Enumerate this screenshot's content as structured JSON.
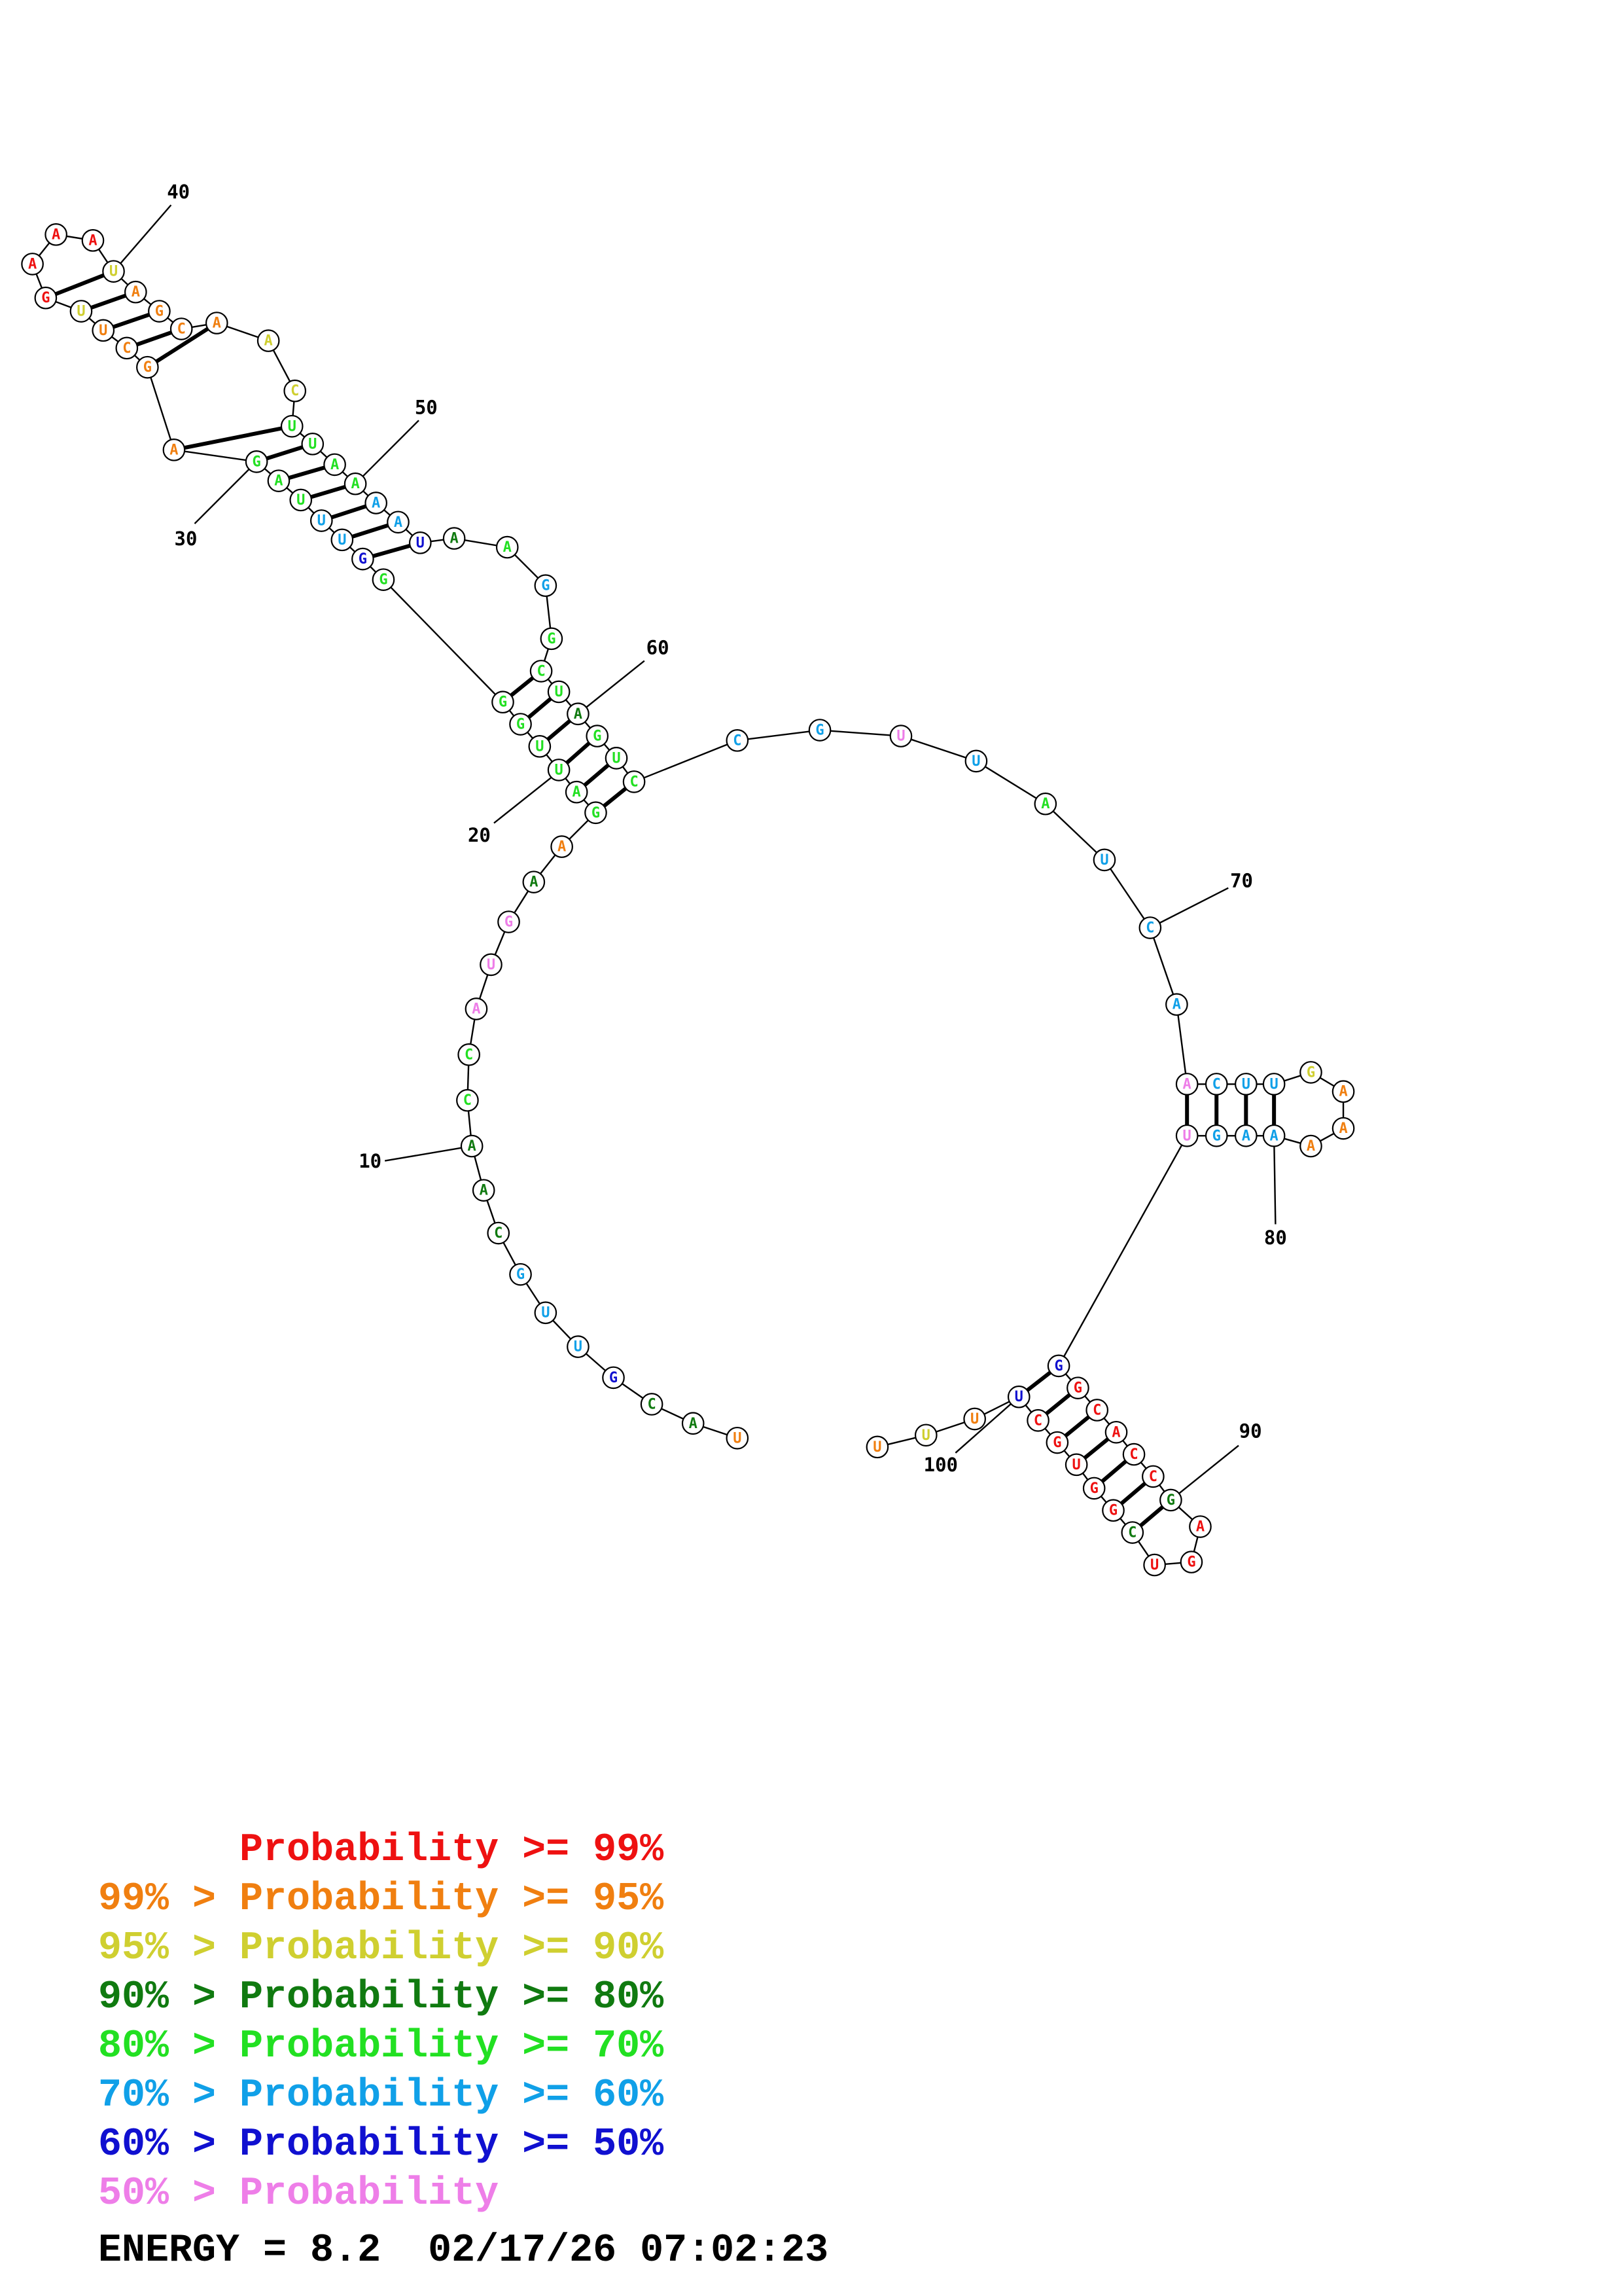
{
  "colors": {
    "p99": "#ee1111",
    "p95": "#f07f10",
    "p90": "#cfcf30",
    "p80": "#107a10",
    "p70": "#22e022",
    "p60": "#10a0e8",
    "p50": "#1010d0",
    "p0": "#ee7ee8"
  },
  "bases": [
    {
      "n": 1,
      "b": "U",
      "c": "p95"
    },
    {
      "n": 2,
      "b": "A",
      "c": "p80"
    },
    {
      "n": 3,
      "b": "C",
      "c": "p80"
    },
    {
      "n": 4,
      "b": "G",
      "c": "p50"
    },
    {
      "n": 5,
      "b": "U",
      "c": "p60"
    },
    {
      "n": 6,
      "b": "U",
      "c": "p60"
    },
    {
      "n": 7,
      "b": "G",
      "c": "p60"
    },
    {
      "n": 8,
      "b": "C",
      "c": "p80"
    },
    {
      "n": 9,
      "b": "A",
      "c": "p80"
    },
    {
      "n": 10,
      "b": "A",
      "c": "p80"
    },
    {
      "n": 11,
      "b": "C",
      "c": "p70"
    },
    {
      "n": 12,
      "b": "C",
      "c": "p70"
    },
    {
      "n": 13,
      "b": "A",
      "c": "p0"
    },
    {
      "n": 14,
      "b": "U",
      "c": "p0"
    },
    {
      "n": 15,
      "b": "G",
      "c": "p0"
    },
    {
      "n": 16,
      "b": "A",
      "c": "p80"
    },
    {
      "n": 17,
      "b": "A",
      "c": "p95"
    },
    {
      "n": 18,
      "b": "G",
      "c": "p70"
    },
    {
      "n": 19,
      "b": "A",
      "c": "p70"
    },
    {
      "n": 20,
      "b": "U",
      "c": "p70"
    },
    {
      "n": 21,
      "b": "U",
      "c": "p70"
    },
    {
      "n": 22,
      "b": "G",
      "c": "p70"
    },
    {
      "n": 23,
      "b": "G",
      "c": "p70"
    },
    {
      "n": 24,
      "b": "G",
      "c": "p70"
    },
    {
      "n": 25,
      "b": "G",
      "c": "p50"
    },
    {
      "n": 26,
      "b": "U",
      "c": "p60"
    },
    {
      "n": 27,
      "b": "U",
      "c": "p60"
    },
    {
      "n": 28,
      "b": "U",
      "c": "p70"
    },
    {
      "n": 29,
      "b": "A",
      "c": "p70"
    },
    {
      "n": 30,
      "b": "G",
      "c": "p70"
    },
    {
      "n": 31,
      "b": "A",
      "c": "p95"
    },
    {
      "n": 32,
      "b": "G",
      "c": "p95"
    },
    {
      "n": 33,
      "b": "C",
      "c": "p95"
    },
    {
      "n": 34,
      "b": "U",
      "c": "p95"
    },
    {
      "n": 35,
      "b": "U",
      "c": "p90"
    },
    {
      "n": 36,
      "b": "G",
      "c": "p99"
    },
    {
      "n": 37,
      "b": "A",
      "c": "p99"
    },
    {
      "n": 38,
      "b": "A",
      "c": "p99"
    },
    {
      "n": 39,
      "b": "A",
      "c": "p99"
    },
    {
      "n": 40,
      "b": "U",
      "c": "p90"
    },
    {
      "n": 41,
      "b": "A",
      "c": "p95"
    },
    {
      "n": 42,
      "b": "G",
      "c": "p95"
    },
    {
      "n": 43,
      "b": "C",
      "c": "p95"
    },
    {
      "n": 44,
      "b": "A",
      "c": "p95"
    },
    {
      "n": 45,
      "b": "A",
      "c": "p90"
    },
    {
      "n": 46,
      "b": "C",
      "c": "p90"
    },
    {
      "n": 47,
      "b": "U",
      "c": "p70"
    },
    {
      "n": 48,
      "b": "U",
      "c": "p70"
    },
    {
      "n": 49,
      "b": "A",
      "c": "p70"
    },
    {
      "n": 50,
      "b": "A",
      "c": "p70"
    },
    {
      "n": 51,
      "b": "A",
      "c": "p60"
    },
    {
      "n": 52,
      "b": "A",
      "c": "p60"
    },
    {
      "n": 53,
      "b": "U",
      "c": "p50"
    },
    {
      "n": 54,
      "b": "A",
      "c": "p80"
    },
    {
      "n": 55,
      "b": "A",
      "c": "p70"
    },
    {
      "n": 56,
      "b": "G",
      "c": "p60"
    },
    {
      "n": 57,
      "b": "G",
      "c": "p70"
    },
    {
      "n": 58,
      "b": "C",
      "c": "p70"
    },
    {
      "n": 59,
      "b": "U",
      "c": "p70"
    },
    {
      "n": 60,
      "b": "A",
      "c": "p80"
    },
    {
      "n": 61,
      "b": "G",
      "c": "p70"
    },
    {
      "n": 62,
      "b": "U",
      "c": "p70"
    },
    {
      "n": 63,
      "b": "C",
      "c": "p70"
    },
    {
      "n": 64,
      "b": "C",
      "c": "p60"
    },
    {
      "n": 65,
      "b": "G",
      "c": "p60"
    },
    {
      "n": 66,
      "b": "U",
      "c": "p0"
    },
    {
      "n": 67,
      "b": "U",
      "c": "p60"
    },
    {
      "n": 68,
      "b": "A",
      "c": "p70"
    },
    {
      "n": 69,
      "b": "U",
      "c": "p60"
    },
    {
      "n": 70,
      "b": "C",
      "c": "p60"
    },
    {
      "n": 71,
      "b": "A",
      "c": "p60"
    },
    {
      "n": 72,
      "b": "A",
      "c": "p0"
    },
    {
      "n": 73,
      "b": "C",
      "c": "p60"
    },
    {
      "n": 74,
      "b": "U",
      "c": "p60"
    },
    {
      "n": 75,
      "b": "U",
      "c": "p60"
    },
    {
      "n": 76,
      "b": "G",
      "c": "p90"
    },
    {
      "n": 77,
      "b": "A",
      "c": "p95"
    },
    {
      "n": 78,
      "b": "A",
      "c": "p95"
    },
    {
      "n": 79,
      "b": "A",
      "c": "p95"
    },
    {
      "n": 80,
      "b": "A",
      "c": "p60"
    },
    {
      "n": 81,
      "b": "A",
      "c": "p60"
    },
    {
      "n": 82,
      "b": "G",
      "c": "p60"
    },
    {
      "n": 83,
      "b": "U",
      "c": "p0"
    },
    {
      "n": 84,
      "b": "G",
      "c": "p50"
    },
    {
      "n": 85,
      "b": "G",
      "c": "p99"
    },
    {
      "n": 86,
      "b": "C",
      "c": "p99"
    },
    {
      "n": 87,
      "b": "A",
      "c": "p99"
    },
    {
      "n": 88,
      "b": "C",
      "c": "p99"
    },
    {
      "n": 89,
      "b": "C",
      "c": "p99"
    },
    {
      "n": 90,
      "b": "G",
      "c": "p80"
    },
    {
      "n": 91,
      "b": "A",
      "c": "p99"
    },
    {
      "n": 92,
      "b": "G",
      "c": "p99"
    },
    {
      "n": 93,
      "b": "U",
      "c": "p99"
    },
    {
      "n": 94,
      "b": "C",
      "c": "p80"
    },
    {
      "n": 95,
      "b": "G",
      "c": "p99"
    },
    {
      "n": 96,
      "b": "G",
      "c": "p99"
    },
    {
      "n": 97,
      "b": "U",
      "c": "p99"
    },
    {
      "n": 98,
      "b": "G",
      "c": "p99"
    },
    {
      "n": 99,
      "b": "C",
      "c": "p99"
    },
    {
      "n": 100,
      "b": "U",
      "c": "p50"
    },
    {
      "n": 101,
      "b": "U",
      "c": "p95"
    },
    {
      "n": 102,
      "b": "U",
      "c": "p90"
    },
    {
      "n": 103,
      "b": "U",
      "c": "p95"
    }
  ],
  "pairs": [
    [
      18,
      63
    ],
    [
      19,
      62
    ],
    [
      20,
      61
    ],
    [
      21,
      60
    ],
    [
      22,
      59
    ],
    [
      23,
      58
    ],
    [
      25,
      53
    ],
    [
      26,
      52
    ],
    [
      27,
      51
    ],
    [
      28,
      50
    ],
    [
      29,
      49
    ],
    [
      30,
      48
    ],
    [
      31,
      47
    ],
    [
      32,
      44
    ],
    [
      33,
      43
    ],
    [
      34,
      42
    ],
    [
      35,
      41
    ],
    [
      36,
      40
    ],
    [
      72,
      83
    ],
    [
      73,
      82
    ],
    [
      74,
      81
    ],
    [
      75,
      80
    ],
    [
      84,
      100
    ],
    [
      85,
      99
    ],
    [
      86,
      98
    ],
    [
      87,
      97
    ],
    [
      88,
      96
    ],
    [
      89,
      95
    ],
    [
      90,
      94
    ]
  ],
  "tick_labels": [
    "10",
    "20",
    "30",
    "40",
    "50",
    "60",
    "70",
    "80",
    "90",
    "100"
  ],
  "legend": [
    {
      "prefix": "    ",
      "text": "Probability >= 99%",
      "c": "p99"
    },
    {
      "prefix": "99% > ",
      "text": "Probability >= 95%",
      "c": "p95"
    },
    {
      "prefix": "95% > ",
      "text": "Probability >= 90%",
      "c": "p90"
    },
    {
      "prefix": "90% > ",
      "text": "Probability >= 80%",
      "c": "p80"
    },
    {
      "prefix": "80% > ",
      "text": "Probability >= 70%",
      "c": "p70"
    },
    {
      "prefix": "70% > ",
      "text": "Probability >= 60%",
      "c": "p60"
    },
    {
      "prefix": "60% > ",
      "text": "Probability >= 50%",
      "c": "p50"
    },
    {
      "prefix": "50% > ",
      "text": "Probability",
      "c": "p0"
    }
  ],
  "energy": "ENERGY = 8.2  02/17/26 07:02:23"
}
